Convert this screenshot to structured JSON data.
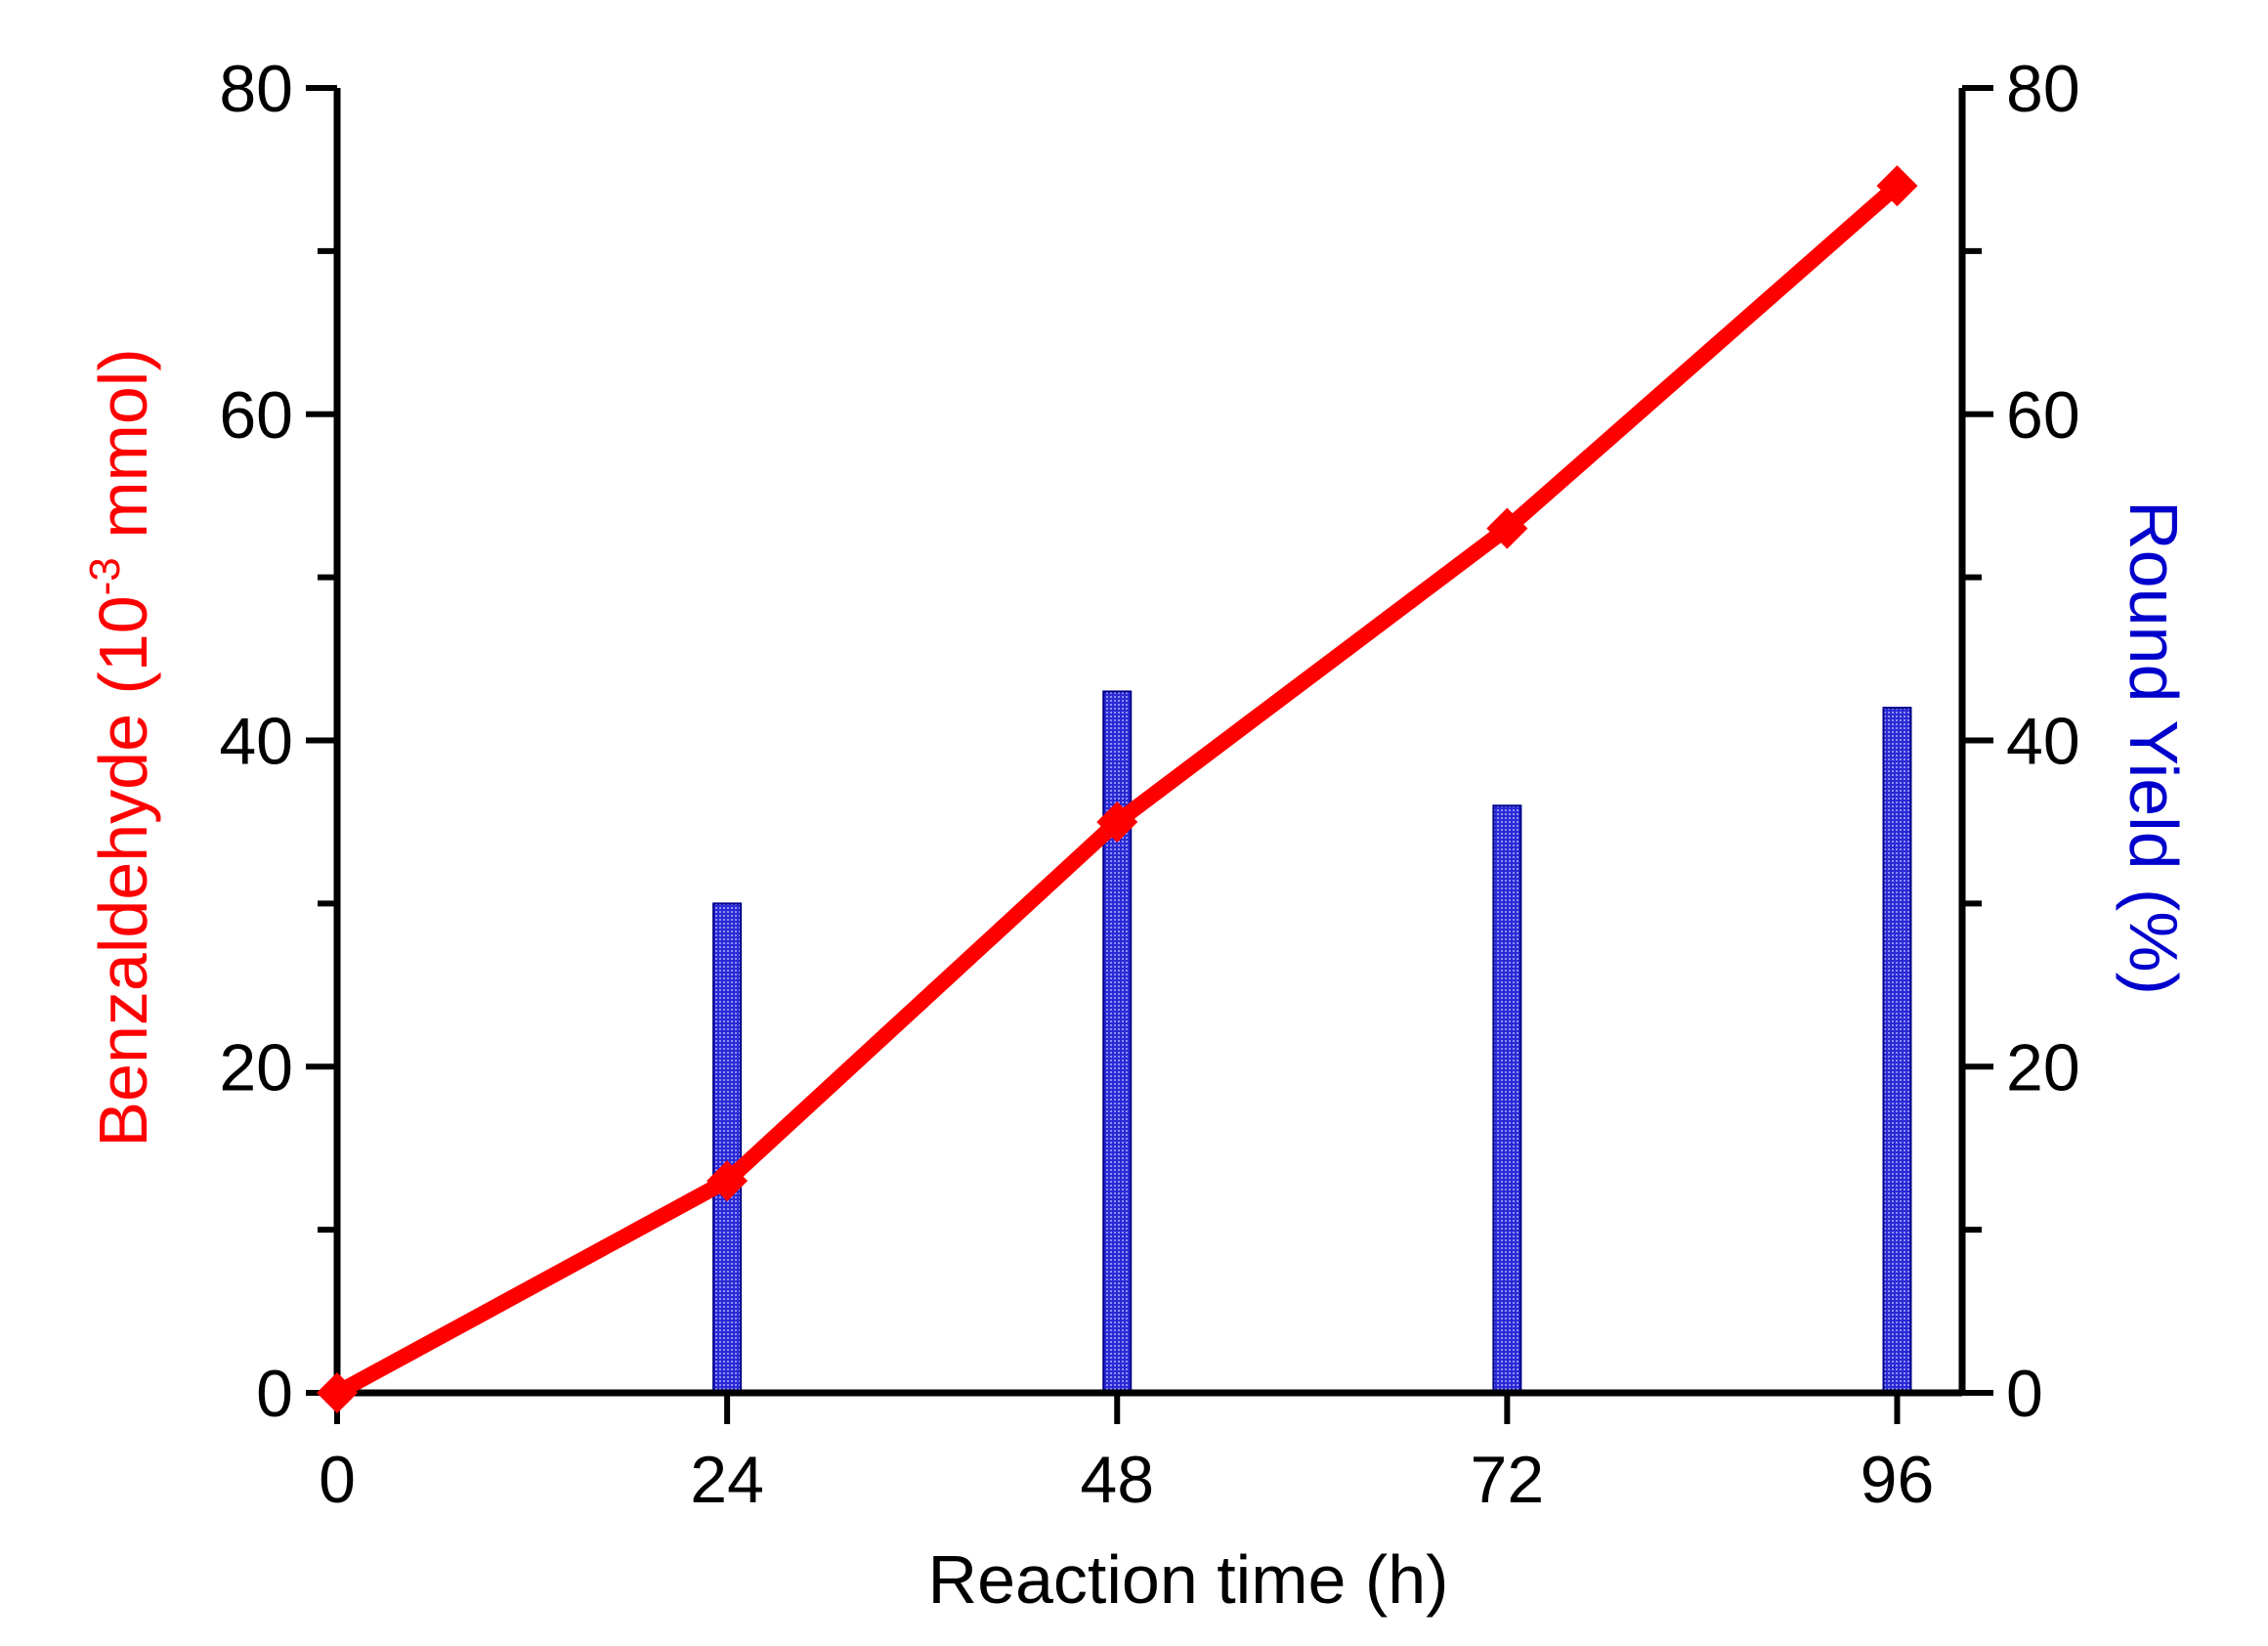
{
  "chart_data": {
    "type": "bar+line",
    "x": [
      0,
      24,
      48,
      72,
      96
    ],
    "xlabel": "Reaction time (h)",
    "x_ticks": [
      "0",
      "24",
      "48",
      "72",
      "96"
    ],
    "xlim": [
      0,
      100
    ],
    "left_axis": {
      "label_main": "Benzaldehyde (10",
      "label_sup": "-3",
      "label_tail": " mmol)",
      "ylim": [
        0,
        80
      ],
      "ticks": [
        "0",
        "20",
        "40",
        "60",
        "80"
      ],
      "color": "#ff0000"
    },
    "right_axis": {
      "label": "Round Yield (%)",
      "ylim": [
        0,
        80
      ],
      "ticks": [
        "0",
        "20",
        "40",
        "60",
        "80"
      ],
      "color": "#0000cc"
    },
    "series": [
      {
        "name": "Benzaldehyde",
        "type": "line",
        "axis": "left",
        "marker": "diamond",
        "color": "#ff0000",
        "x": [
          0,
          24,
          48,
          72,
          96
        ],
        "values": [
          0,
          13,
          35,
          53,
          74
        ]
      },
      {
        "name": "Round Yield",
        "type": "bar",
        "axis": "right",
        "color": "#1a1acc",
        "x": [
          24,
          48,
          72,
          96
        ],
        "values": [
          30,
          43,
          36,
          42
        ]
      }
    ]
  }
}
